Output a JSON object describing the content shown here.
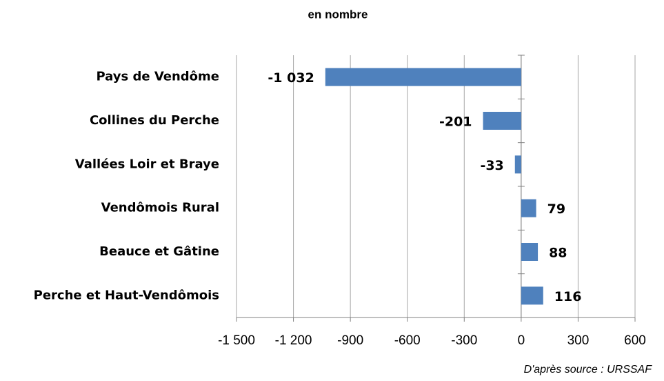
{
  "chart_data": {
    "type": "hbar",
    "title": "en nombre",
    "categories": [
      "Pays de Vendôme",
      "Collines du Perche",
      "Vallées Loir et Braye",
      "Vendômois Rural",
      "Beauce et Gâtine",
      "Perche et Haut-Vendômois"
    ],
    "values": [
      -1032,
      -201,
      -33,
      79,
      88,
      116
    ],
    "value_labels": [
      "-1 032",
      "-201",
      "-33",
      "79",
      "88",
      "116"
    ],
    "color": "#4f81bd",
    "xlim": [
      -1500,
      600
    ],
    "xticks": [
      {
        "value": -1500,
        "label": "-1 500"
      },
      {
        "value": -1200,
        "label": "-1 200"
      },
      -900,
      -600,
      -300,
      0,
      300,
      600
    ],
    "grid": true,
    "source": "D'après source : URSSAF"
  }
}
